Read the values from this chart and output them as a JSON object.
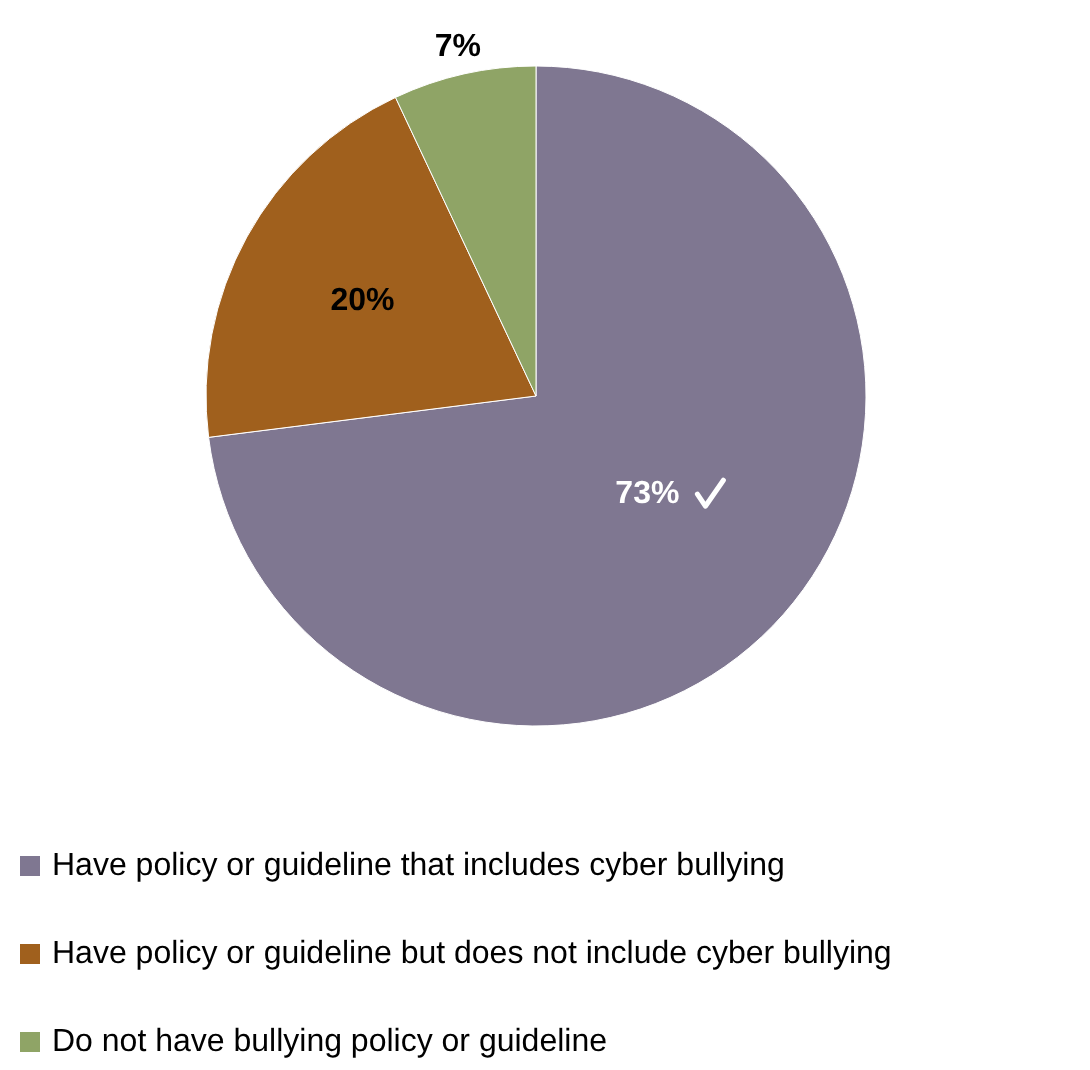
{
  "chart_data": {
    "type": "pie",
    "categories": [
      "Have policy or guideline that includes cyber bullying",
      "Have policy or guideline but does not include cyber bullying",
      "Do not have bullying policy or guideline"
    ],
    "values": [
      73,
      20,
      7
    ],
    "colors": [
      "#7f7791",
      "#a0601d",
      "#8fa466"
    ],
    "value_labels": [
      "73%",
      "20%",
      "7%"
    ],
    "legend": "bottom"
  }
}
